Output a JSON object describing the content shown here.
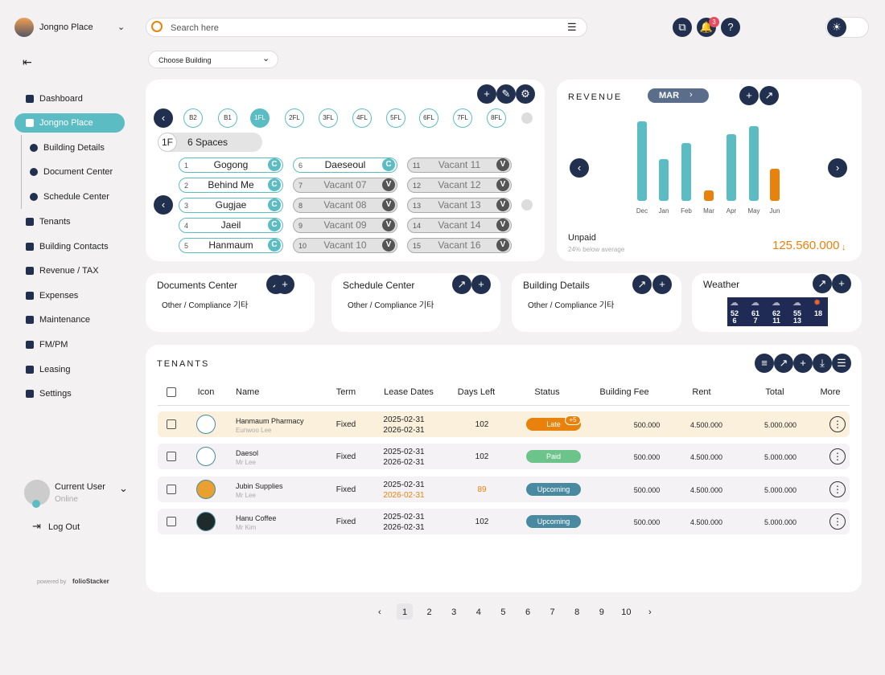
{
  "header": {
    "building": "Jongno Place",
    "search_placeholder": "Search here",
    "notifications": "3"
  },
  "sidebar": {
    "nav": [
      {
        "label": "Dashboard"
      },
      {
        "label": "Jongno Place",
        "active": true
      },
      {
        "label": "Building Details",
        "sub": true
      },
      {
        "label": "Document Center",
        "sub": true
      },
      {
        "label": "Schedule Center",
        "sub": true
      },
      {
        "label": "Tenants"
      },
      {
        "label": "Building Contacts"
      },
      {
        "label": "Revenue / TAX"
      },
      {
        "label": "Expenses"
      },
      {
        "label": "Maintenance"
      },
      {
        "label": "FM/PM"
      },
      {
        "label": "Leasing"
      },
      {
        "label": "Settings"
      }
    ],
    "user": {
      "name": "Current User",
      "status": "Online"
    },
    "logout": "Log Out",
    "powered": "powered by",
    "brand": "folioStacker"
  },
  "building_select": "Choose Building",
  "floors": {
    "items": [
      "B2",
      "B1",
      "1FL",
      "2FL",
      "3FL",
      "4FL",
      "5FL",
      "6FL",
      "7FL",
      "8FL"
    ],
    "selected": 2,
    "floor": "1F",
    "spaces": "6 Spaces",
    "cells": [
      {
        "no": "1",
        "name": "Gogong",
        "badge": "C"
      },
      {
        "no": "2",
        "name": "Behind Me",
        "badge": "C"
      },
      {
        "no": "3",
        "name": "Gugjae",
        "badge": "C"
      },
      {
        "no": "4",
        "name": "Jaeil",
        "badge": "C"
      },
      {
        "no": "5",
        "name": "Hanmaum",
        "badge": "C"
      },
      {
        "no": "6",
        "name": "Daeseoul",
        "badge": "C"
      },
      {
        "no": "7",
        "name": "Vacant 07",
        "badge": "V"
      },
      {
        "no": "8",
        "name": "Vacant 08",
        "badge": "V"
      },
      {
        "no": "9",
        "name": "Vacant 09",
        "badge": "V"
      },
      {
        "no": "10",
        "name": "Vacant 10",
        "badge": "V"
      },
      {
        "no": "11",
        "name": "Vacant 11",
        "badge": "V"
      },
      {
        "no": "12",
        "name": "Vacant 12",
        "badge": "V"
      },
      {
        "no": "13",
        "name": "Vacant 13",
        "badge": "V"
      },
      {
        "no": "14",
        "name": "Vacant 14",
        "badge": "V"
      },
      {
        "no": "15",
        "name": "Vacant 16",
        "badge": "V"
      }
    ]
  },
  "revenue": {
    "title": "REVENUE",
    "month": "MAR",
    "chart": {
      "type": "bar",
      "categories": [
        "Dec",
        "Jan",
        "Feb",
        "Mar",
        "Apr",
        "May",
        "Jun"
      ],
      "values": [
        99,
        52,
        72,
        13,
        83,
        93,
        40
      ],
      "colors": [
        "#5bbcc4",
        "#5bbcc4",
        "#5bbcc4",
        "#e8820c",
        "#5bbcc4",
        "#5bbcc4",
        "#e8820c"
      ]
    },
    "label": "Unpaid",
    "note": "24% below average",
    "amount": "125.560.000"
  },
  "cards": [
    {
      "title": "Documents Center",
      "text": "Other / Compliance 기타"
    },
    {
      "title": "Schedule Center",
      "text": "Other / Compliance 기타"
    },
    {
      "title": "Building Details",
      "text": "Other / Compliance 기타"
    }
  ],
  "weather": {
    "title": "Weather",
    "days": [
      [
        "52",
        "6"
      ],
      [
        "61",
        "7"
      ],
      [
        "62",
        "11"
      ],
      [
        "55",
        "13"
      ],
      [
        "18"
      ]
    ]
  },
  "tenants": {
    "title": "TENANTS",
    "columns": [
      "Icon",
      "Name",
      "Term",
      "Lease Dates",
      "Days Left",
      "Status",
      "Building Fee",
      "Rent",
      "Total",
      "More"
    ],
    "rows": [
      {
        "name": "Hanmaum Pharmacy",
        "contact": "Eunwoo Lee",
        "term": "Fixed",
        "start": "2025-02-31",
        "end": "2026-02-31",
        "days": "102",
        "status": "Late",
        "status_color": "#e8820c",
        "extra": "+5",
        "fee": "500.000",
        "rent": "4.500.000",
        "total": "5.000.000",
        "bg": "#fbf0dc"
      },
      {
        "name": "Daesol",
        "contact": "Mr Lee",
        "term": "Fixed",
        "start": "2025-02-31",
        "end": "2026-02-31",
        "days": "102",
        "status": "Paid",
        "status_color": "#6cc48a",
        "fee": "500.000",
        "rent": "4.500.000",
        "total": "5.000.000",
        "bg": "#f4f2f4"
      },
      {
        "name": "Jubin Supplies",
        "contact": "Mr Lee",
        "term": "Fixed",
        "start": "2025-02-31",
        "end": "2026-02-31",
        "days": "89",
        "status": "Upcoming",
        "status_color": "#4a8aa0",
        "warn_color": "#e8820c",
        "fee": "500.000",
        "rent": "4.500.000",
        "total": "5.000.000",
        "bg": "#f4f2f4"
      },
      {
        "name": "Hanu Coffee",
        "contact": "Mr Kim",
        "term": "Fixed",
        "start": "2025-02-31",
        "end": "2026-02-31",
        "days": "102",
        "status": "Upcoming",
        "status_color": "#4a8aa0",
        "fee": "500.000",
        "rent": "4.500.000",
        "total": "5.000.000",
        "bg": "#f4f2f4"
      }
    ]
  },
  "pagination": [
    "1",
    "2",
    "3",
    "4",
    "5",
    "6",
    "7",
    "8",
    "9",
    "10"
  ]
}
